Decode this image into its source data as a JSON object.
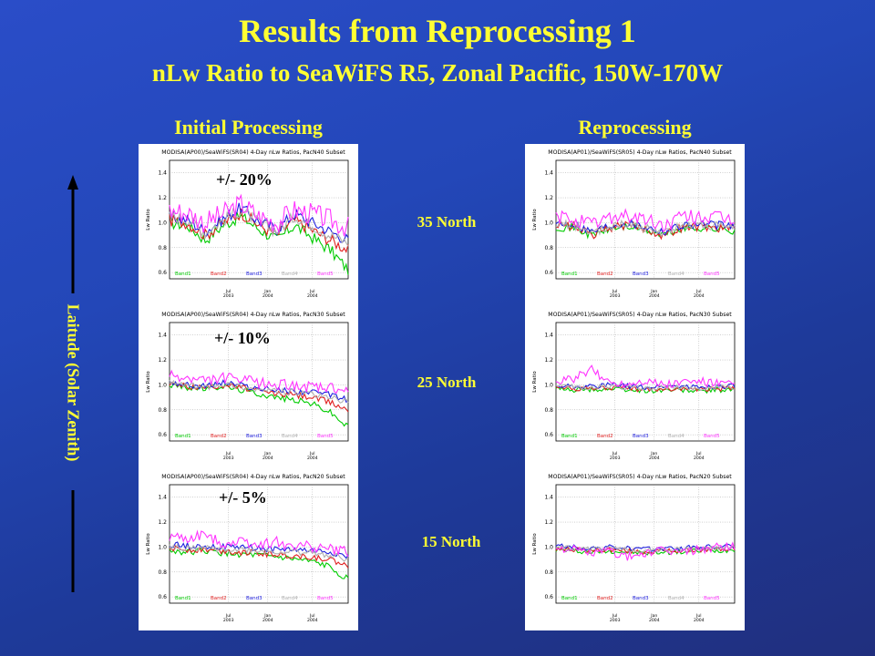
{
  "title": "Results from Reprocessing 1",
  "subtitle": "nLw Ratio to SeaWiFS R5, Zonal Pacific, 150W-170W",
  "columns": {
    "left": "Initial Processing",
    "right": "Reprocessing"
  },
  "axis_label": "Laitude (Solar Zenith)",
  "latitudes": [
    "35 North",
    "25 North",
    "15 North"
  ],
  "tolerances": [
    "+/- 20%",
    "+/- 10%",
    "+/- 5%"
  ],
  "colors": {
    "title": "#ffff33",
    "bands": [
      "#00cc00",
      "#e02020",
      "#2020e0",
      "#b0b0b0",
      "#ff33ff"
    ]
  },
  "chart_data": [
    {
      "type": "line",
      "title": "MODISA(AP00)/SeaWiFS(SR04) 4-Day nLw Ratios, PacN40 Subset",
      "ylabel": "Lw Ratio",
      "ylim": [
        0.55,
        1.5
      ],
      "yticks": [
        "1.4",
        "1.2",
        "1.0",
        "0.8",
        "0.6"
      ],
      "xticks": [
        "Jul 2003",
        "Jan 2004",
        "Jul 2004"
      ],
      "legend": [
        "Band1",
        "Band2",
        "Band3",
        "Band4",
        "Band5"
      ],
      "volatility": 0.05,
      "x": [
        0,
        0.1,
        0.2,
        0.3,
        0.4,
        0.5,
        0.6,
        0.7,
        0.8,
        0.9,
        1.0
      ],
      "series": [
        {
          "name": "Band1",
          "values": [
            1.0,
            0.98,
            0.86,
            0.98,
            1.05,
            0.95,
            0.86,
            0.98,
            0.88,
            0.78,
            0.62
          ]
        },
        {
          "name": "Band2",
          "values": [
            1.02,
            1.0,
            0.9,
            1.0,
            1.08,
            0.98,
            0.9,
            1.02,
            0.94,
            0.86,
            0.78
          ]
        },
        {
          "name": "Band3",
          "values": [
            1.04,
            1.02,
            0.93,
            1.03,
            1.12,
            1.01,
            0.95,
            1.07,
            1.0,
            0.93,
            0.86
          ]
        },
        {
          "name": "Band4",
          "values": [
            1.05,
            1.03,
            0.92,
            1.02,
            1.1,
            1.0,
            0.93,
            1.05,
            0.98,
            0.9,
            0.84
          ]
        },
        {
          "name": "Band5",
          "values": [
            1.1,
            1.08,
            1.0,
            1.07,
            1.15,
            1.05,
            1.0,
            1.1,
            1.07,
            1.02,
            0.96
          ]
        }
      ]
    },
    {
      "type": "line",
      "title": "MODISA(AP00)/SeaWiFS(SR04) 4-Day nLw Ratios, PacN30 Subset",
      "ylabel": "Lw Ratio",
      "ylim": [
        0.55,
        1.5
      ],
      "yticks": [
        "1.4",
        "1.2",
        "1.0",
        "0.8",
        "0.6"
      ],
      "xticks": [
        "Jul 2003",
        "Jan 2004",
        "Jul 2004"
      ],
      "legend": [
        "Band1",
        "Band2",
        "Band3",
        "Band4",
        "Band5"
      ],
      "volatility": 0.025,
      "x": [
        0,
        0.1,
        0.2,
        0.3,
        0.4,
        0.5,
        0.6,
        0.7,
        0.8,
        0.9,
        1.0
      ],
      "series": [
        {
          "name": "Band1",
          "values": [
            1.0,
            0.98,
            0.97,
            0.99,
            0.96,
            0.93,
            0.9,
            0.88,
            0.85,
            0.78,
            0.66
          ]
        },
        {
          "name": "Band2",
          "values": [
            1.01,
            0.99,
            0.98,
            1.0,
            0.98,
            0.95,
            0.93,
            0.92,
            0.9,
            0.86,
            0.8
          ]
        },
        {
          "name": "Band3",
          "values": [
            1.03,
            1.0,
            0.99,
            1.02,
            1.0,
            0.97,
            0.96,
            0.95,
            0.94,
            0.92,
            0.88
          ]
        },
        {
          "name": "Band4",
          "values": [
            1.02,
            1.0,
            0.98,
            1.01,
            0.99,
            0.96,
            0.95,
            0.94,
            0.92,
            0.9,
            0.86
          ]
        },
        {
          "name": "Band5",
          "values": [
            1.07,
            1.05,
            1.03,
            1.06,
            1.04,
            1.02,
            1.0,
            1.0,
            0.98,
            0.97,
            0.94
          ]
        }
      ]
    },
    {
      "type": "line",
      "title": "MODISA(AP00)/SeaWiFS(SR04) 4-Day nLw Ratios, PacN20 Subset",
      "ylabel": "Lw Ratio",
      "ylim": [
        0.55,
        1.5
      ],
      "yticks": [
        "1.4",
        "1.2",
        "1.0",
        "0.8",
        "0.6"
      ],
      "xticks": [
        "Jul 2003",
        "Jan 2004",
        "Jul 2004"
      ],
      "legend": [
        "Band1",
        "Band2",
        "Band3",
        "Band4",
        "Band5"
      ],
      "volatility": 0.025,
      "x": [
        0,
        0.1,
        0.2,
        0.3,
        0.4,
        0.5,
        0.6,
        0.7,
        0.8,
        0.9,
        1.0
      ],
      "series": [
        {
          "name": "Band1",
          "values": [
            0.97,
            0.96,
            0.97,
            0.95,
            0.94,
            0.93,
            0.92,
            0.9,
            0.88,
            0.84,
            0.74
          ]
        },
        {
          "name": "Band2",
          "values": [
            0.99,
            0.98,
            0.98,
            0.97,
            0.96,
            0.95,
            0.94,
            0.93,
            0.92,
            0.9,
            0.84
          ]
        },
        {
          "name": "Band3",
          "values": [
            1.02,
            1.01,
            1.01,
            1.0,
            1.0,
            0.99,
            0.98,
            0.98,
            0.97,
            0.96,
            0.92
          ]
        },
        {
          "name": "Band4",
          "values": [
            1.0,
            0.99,
            0.99,
            0.98,
            0.98,
            0.97,
            0.96,
            0.96,
            0.95,
            0.94,
            0.9
          ]
        },
        {
          "name": "Band5",
          "values": [
            1.08,
            1.06,
            1.1,
            1.03,
            1.05,
            1.02,
            1.04,
            1.01,
            1.0,
            0.98,
            0.96
          ]
        }
      ]
    },
    {
      "type": "line",
      "title": "MODISA(AP01)/SeaWiFS(SR05) 4-Day nLw Ratios, PacN40 Subset",
      "ylabel": "Lw Ratio",
      "ylim": [
        0.55,
        1.5
      ],
      "yticks": [
        "1.4",
        "1.2",
        "1.0",
        "0.8",
        "0.6"
      ],
      "xticks": [
        "Jul 2003",
        "Jan 2004",
        "Jul 2004"
      ],
      "legend": [
        "Band1",
        "Band2",
        "Band3",
        "Band4",
        "Band5"
      ],
      "volatility": 0.035,
      "x": [
        0,
        0.1,
        0.2,
        0.3,
        0.4,
        0.5,
        0.6,
        0.7,
        0.8,
        0.9,
        1.0
      ],
      "series": [
        {
          "name": "Band1",
          "values": [
            0.97,
            0.96,
            0.9,
            0.95,
            0.97,
            0.94,
            0.9,
            0.95,
            0.96,
            0.95,
            0.94
          ]
        },
        {
          "name": "Band2",
          "values": [
            0.98,
            0.97,
            0.9,
            0.96,
            0.98,
            0.95,
            0.9,
            0.96,
            0.97,
            0.96,
            0.95
          ]
        },
        {
          "name": "Band3",
          "values": [
            1.0,
            0.99,
            0.93,
            0.98,
            1.0,
            0.97,
            0.93,
            0.98,
            0.99,
            0.98,
            0.97
          ]
        },
        {
          "name": "Band4",
          "values": [
            0.99,
            0.98,
            0.92,
            0.97,
            0.99,
            0.96,
            0.92,
            0.97,
            0.98,
            0.97,
            0.96
          ]
        },
        {
          "name": "Band5",
          "values": [
            1.04,
            1.03,
            0.98,
            1.05,
            1.06,
            1.02,
            0.97,
            1.04,
            1.05,
            1.03,
            1.02
          ]
        }
      ]
    },
    {
      "type": "line",
      "title": "MODISA(AP01)/SeaWiFS(SR05) 4-Day nLw Ratios, PacN30 Subset",
      "ylabel": "Lw Ratio",
      "ylim": [
        0.55,
        1.5
      ],
      "yticks": [
        "1.4",
        "1.2",
        "1.0",
        "0.8",
        "0.6"
      ],
      "xticks": [
        "Jul 2003",
        "Jan 2004",
        "Jul 2004"
      ],
      "legend": [
        "Band1",
        "Band2",
        "Band3",
        "Band4",
        "Band5"
      ],
      "volatility": 0.02,
      "x": [
        0,
        0.1,
        0.2,
        0.3,
        0.4,
        0.5,
        0.6,
        0.7,
        0.8,
        0.9,
        1.0
      ],
      "series": [
        {
          "name": "Band1",
          "values": [
            0.97,
            0.96,
            0.96,
            0.97,
            0.96,
            0.95,
            0.96,
            0.96,
            0.95,
            0.96,
            0.96
          ]
        },
        {
          "name": "Band2",
          "values": [
            0.98,
            0.97,
            0.97,
            0.98,
            0.97,
            0.96,
            0.97,
            0.97,
            0.96,
            0.97,
            0.97
          ]
        },
        {
          "name": "Band3",
          "values": [
            1.0,
            0.99,
            0.99,
            1.0,
            0.99,
            0.98,
            0.99,
            0.99,
            0.98,
            0.99,
            0.99
          ]
        },
        {
          "name": "Band4",
          "values": [
            0.99,
            0.98,
            0.98,
            0.99,
            0.98,
            0.97,
            0.98,
            0.98,
            0.97,
            0.98,
            0.98
          ]
        },
        {
          "name": "Band5",
          "values": [
            1.02,
            1.05,
            1.12,
            1.02,
            1.01,
            1.04,
            1.0,
            1.02,
            1.03,
            1.01,
            1.0
          ]
        }
      ]
    },
    {
      "type": "line",
      "title": "MODISA(AP01)/SeaWiFS(SR05) 4-Day nLw Ratios, PacN20 Subset",
      "ylabel": "Lw Ratio",
      "ylim": [
        0.55,
        1.5
      ],
      "yticks": [
        "1.4",
        "1.2",
        "1.0",
        "0.8",
        "0.6"
      ],
      "xticks": [
        "Jul 2003",
        "Jan 2004",
        "Jul 2004"
      ],
      "legend": [
        "Band1",
        "Band2",
        "Band3",
        "Band4",
        "Band5"
      ],
      "volatility": 0.02,
      "x": [
        0,
        0.1,
        0.2,
        0.3,
        0.4,
        0.5,
        0.6,
        0.7,
        0.8,
        0.9,
        1.0
      ],
      "series": [
        {
          "name": "Band1",
          "values": [
            0.98,
            0.97,
            0.96,
            0.97,
            0.96,
            0.95,
            0.96,
            0.96,
            0.97,
            0.97,
            0.98
          ]
        },
        {
          "name": "Band2",
          "values": [
            0.99,
            0.98,
            0.97,
            0.98,
            0.97,
            0.96,
            0.97,
            0.97,
            0.98,
            0.98,
            0.99
          ]
        },
        {
          "name": "Band3",
          "values": [
            1.01,
            1.0,
            0.99,
            1.0,
            0.99,
            0.98,
            0.99,
            0.99,
            1.0,
            1.0,
            1.01
          ]
        },
        {
          "name": "Band4",
          "values": [
            1.0,
            0.99,
            0.98,
            0.99,
            0.98,
            0.97,
            0.98,
            0.98,
            0.99,
            0.99,
            1.0
          ]
        },
        {
          "name": "Band5",
          "values": [
            1.0,
            0.98,
            0.95,
            0.97,
            0.92,
            0.95,
            0.97,
            0.96,
            0.98,
            1.0,
            1.01
          ]
        }
      ]
    }
  ]
}
